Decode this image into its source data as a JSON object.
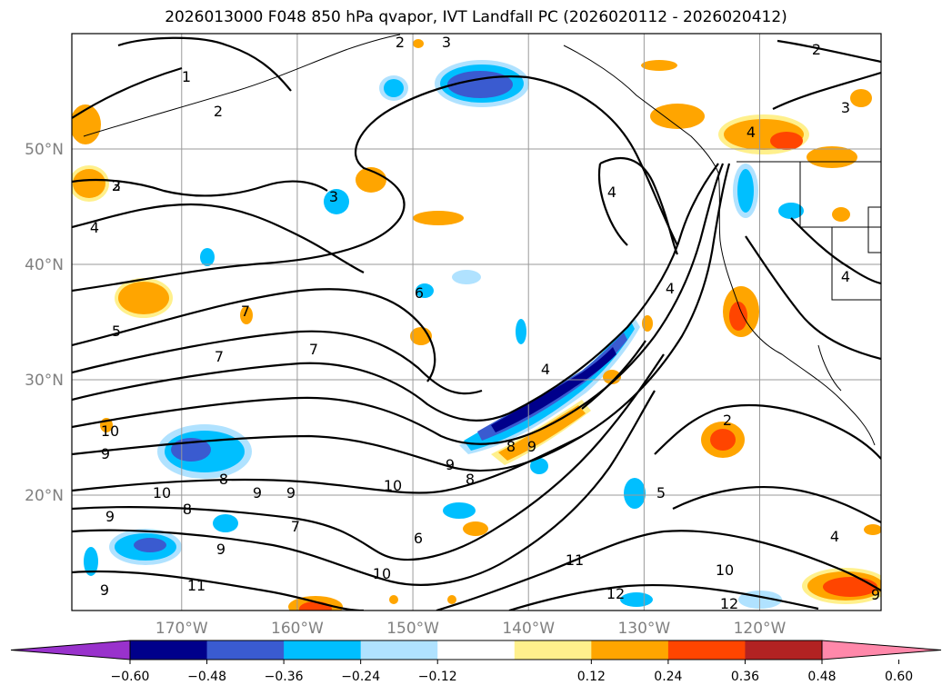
{
  "title": "2026013000 F048 850 hPa qvapor, IVT Landfall PC (2026020112 - 2026020412)",
  "map": {
    "lon_range": [
      -179.5,
      -109.5
    ],
    "lat_range": [
      10,
      60
    ],
    "lat_ticks": [
      {
        "value": 50,
        "label": "50°N"
      },
      {
        "value": 40,
        "label": "40°N"
      },
      {
        "value": 30,
        "label": "30°N"
      },
      {
        "value": 20,
        "label": "20°N"
      }
    ],
    "lon_ticks": [
      {
        "value": -170,
        "label": "170°W"
      },
      {
        "value": -160,
        "label": "160°W"
      },
      {
        "value": -150,
        "label": "150°W"
      },
      {
        "value": -140,
        "label": "140°W"
      },
      {
        "value": -130,
        "label": "130°W"
      },
      {
        "value": -120,
        "label": "120°W"
      }
    ],
    "gridlines": true
  },
  "colorbar": {
    "colors": [
      "#9932cc",
      "#00008b",
      "#3a5bd0",
      "#00bfff",
      "#b0e2ff",
      "#ffffff",
      "#fff08c",
      "#ffa500",
      "#ff4500",
      "#b22222",
      "#ff88aa"
    ],
    "tick_labels": [
      "−0.60",
      "−0.48",
      "−0.36",
      "−0.24",
      "−0.12",
      "0.12",
      "0.24",
      "0.36",
      "0.48",
      "0.60"
    ]
  },
  "contour_labels": [
    "3",
    "1",
    "2",
    "2",
    "3",
    "4",
    "2",
    "3",
    "3",
    "4",
    "2",
    "4",
    "6",
    "5",
    "7",
    "7",
    "7",
    "4",
    "4",
    "10",
    "9",
    "9",
    "8",
    "10",
    "9",
    "9",
    "9",
    "8",
    "10",
    "8",
    "7",
    "6",
    "5",
    "9",
    "9",
    "8",
    "11",
    "10",
    "11",
    "12",
    "10",
    "12",
    "2",
    "4",
    "9",
    "4",
    "9"
  ]
}
